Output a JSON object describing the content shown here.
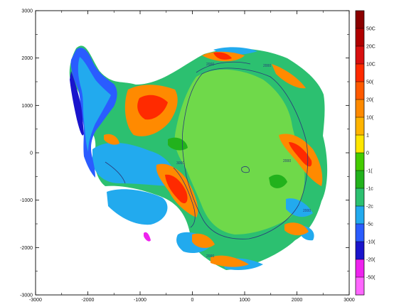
{
  "chart_data": {
    "type": "heatmap",
    "title": "",
    "xlabel": "",
    "ylabel": "",
    "xlim": [
      -3000,
      3000
    ],
    "ylim": [
      -3000,
      3000
    ],
    "x_ticks": [
      "-3000",
      "-2000",
      "-1000",
      "0",
      "1000",
      "2000",
      "3000"
    ],
    "y_ticks": [
      "3000",
      "2000",
      "1000",
      "0",
      "-1000",
      "-2000",
      "-3000"
    ],
    "colorbar": {
      "labels": [
        "50C",
        "20C",
        "10C",
        "50(",
        "20(",
        "10(",
        "1",
        "0",
        "-1(",
        "-1c",
        "-2c",
        "-5c",
        "-10(",
        "-20(",
        "-50("
      ],
      "colors": [
        "#8b0000",
        "#b00000",
        "#d81010",
        "#ff2a00",
        "#ff5a00",
        "#ff8a00",
        "#ffb400",
        "#ffe600",
        "#44cc00",
        "#22b21c",
        "#2cc070",
        "#22aaee",
        "#2a5cff",
        "#1a14cc",
        "#ee22ee",
        "#ff66ff"
      ]
    },
    "contour_labels": [
      "2000",
      "3000",
      "2000",
      "2000",
      "2000",
      "2000"
    ]
  }
}
